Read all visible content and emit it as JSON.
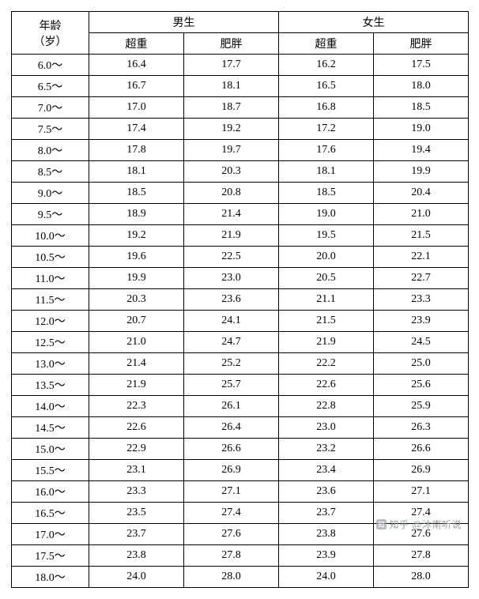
{
  "header": {
    "age_line1": "年龄",
    "age_line2": "（岁）",
    "male": "男生",
    "female": "女生",
    "overweight": "超重",
    "obese": "肥胖"
  },
  "rows": [
    {
      "age": "6.0～",
      "m_ow": "16.4",
      "m_ob": "17.7",
      "f_ow": "16.2",
      "f_ob": "17.5"
    },
    {
      "age": "6.5～",
      "m_ow": "16.7",
      "m_ob": "18.1",
      "f_ow": "16.5",
      "f_ob": "18.0"
    },
    {
      "age": "7.0～",
      "m_ow": "17.0",
      "m_ob": "18.7",
      "f_ow": "16.8",
      "f_ob": "18.5"
    },
    {
      "age": "7.5～",
      "m_ow": "17.4",
      "m_ob": "19.2",
      "f_ow": "17.2",
      "f_ob": "19.0"
    },
    {
      "age": "8.0～",
      "m_ow": "17.8",
      "m_ob": "19.7",
      "f_ow": "17.6",
      "f_ob": "19.4"
    },
    {
      "age": "8.5～",
      "m_ow": "18.1",
      "m_ob": "20.3",
      "f_ow": "18.1",
      "f_ob": "19.9"
    },
    {
      "age": "9.0～",
      "m_ow": "18.5",
      "m_ob": "20.8",
      "f_ow": "18.5",
      "f_ob": "20.4"
    },
    {
      "age": "9.5～",
      "m_ow": "18.9",
      "m_ob": "21.4",
      "f_ow": "19.0",
      "f_ob": "21.0"
    },
    {
      "age": "10.0～",
      "m_ow": "19.2",
      "m_ob": "21.9",
      "f_ow": "19.5",
      "f_ob": "21.5"
    },
    {
      "age": "10.5～",
      "m_ow": "19.6",
      "m_ob": "22.5",
      "f_ow": "20.0",
      "f_ob": "22.1"
    },
    {
      "age": "11.0～",
      "m_ow": "19.9",
      "m_ob": "23.0",
      "f_ow": "20.5",
      "f_ob": "22.7"
    },
    {
      "age": "11.5～",
      "m_ow": "20.3",
      "m_ob": "23.6",
      "f_ow": "21.1",
      "f_ob": "23.3"
    },
    {
      "age": "12.0～",
      "m_ow": "20.7",
      "m_ob": "24.1",
      "f_ow": "21.5",
      "f_ob": "23.9"
    },
    {
      "age": "12.5～",
      "m_ow": "21.0",
      "m_ob": "24.7",
      "f_ow": "21.9",
      "f_ob": "24.5"
    },
    {
      "age": "13.0～",
      "m_ow": "21.4",
      "m_ob": "25.2",
      "f_ow": "22.2",
      "f_ob": "25.0"
    },
    {
      "age": "13.5～",
      "m_ow": "21.9",
      "m_ob": "25.7",
      "f_ow": "22.6",
      "f_ob": "25.6"
    },
    {
      "age": "14.0～",
      "m_ow": "22.3",
      "m_ob": "26.1",
      "f_ow": "22.8",
      "f_ob": "25.9"
    },
    {
      "age": "14.5～",
      "m_ow": "22.6",
      "m_ob": "26.4",
      "f_ow": "23.0",
      "f_ob": "26.3"
    },
    {
      "age": "15.0～",
      "m_ow": "22.9",
      "m_ob": "26.6",
      "f_ow": "23.2",
      "f_ob": "26.6"
    },
    {
      "age": "15.5～",
      "m_ow": "23.1",
      "m_ob": "26.9",
      "f_ow": "23.4",
      "f_ob": "26.9"
    },
    {
      "age": "16.0～",
      "m_ow": "23.3",
      "m_ob": "27.1",
      "f_ow": "23.6",
      "f_ob": "27.1"
    },
    {
      "age": "16.5～",
      "m_ow": "23.5",
      "m_ob": "27.4",
      "f_ow": "23.7",
      "f_ob": "27.4"
    },
    {
      "age": "17.0～",
      "m_ow": "23.7",
      "m_ob": "27.6",
      "f_ow": "23.8",
      "f_ob": "27.6"
    },
    {
      "age": "17.5～",
      "m_ow": "23.8",
      "m_ob": "27.8",
      "f_ow": "23.9",
      "f_ob": "27.8"
    },
    {
      "age": "18.0～",
      "m_ow": "24.0",
      "m_ob": "28.0",
      "f_ow": "24.0",
      "f_ob": "28.0"
    }
  ],
  "watermark": "知乎 @沐南听说"
}
